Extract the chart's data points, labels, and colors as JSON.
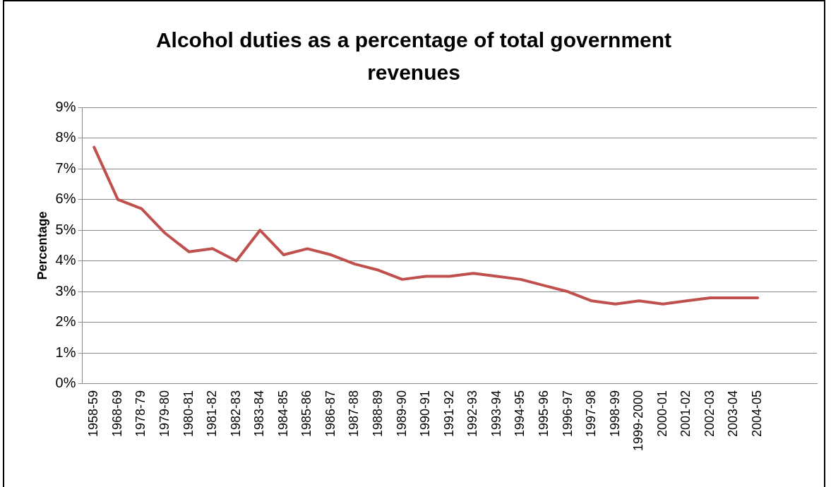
{
  "chart_data": {
    "type": "line",
    "title": "Alcohol duties as a percentage of total government revenues",
    "ylabel": "Percentage",
    "categories": [
      "1958-59",
      "1968-69",
      "1978-79",
      "1979-80",
      "1980-81",
      "1981-82",
      "1982-83",
      "1983-84",
      "1984-85",
      "1985-86",
      "1986-87",
      "1987-88",
      "1988-89",
      "1989-90",
      "1990-91",
      "1991-92",
      "1992-93",
      "1993-94",
      "1994-95",
      "1995-96",
      "1996-97",
      "1997-98",
      "1998-99",
      "1999-2000",
      "2000-01",
      "2001-02",
      "2002-03",
      "2003-04",
      "2004-05",
      null,
      null
    ],
    "series": [
      {
        "color": "#c0504d",
        "values": [
          7.7,
          6.0,
          5.7,
          4.9,
          4.3,
          4.4,
          4.0,
          5.0,
          4.2,
          4.4,
          4.2,
          3.9,
          3.7,
          3.4,
          3.5,
          3.5,
          3.6,
          3.5,
          3.4,
          3.2,
          3.0,
          2.7,
          2.6,
          2.7,
          2.6,
          2.7,
          2.8,
          2.8,
          2.8,
          null,
          null
        ]
      }
    ],
    "ylim": [
      0,
      9
    ],
    "yticks": [
      {
        "value": 0,
        "label": "0%"
      },
      {
        "value": 1,
        "label": "1%"
      },
      {
        "value": 2,
        "label": "2%"
      },
      {
        "value": 3,
        "label": "3%"
      },
      {
        "value": 4,
        "label": "4%"
      },
      {
        "value": 5,
        "label": "5%"
      },
      {
        "value": 6,
        "label": "6%"
      },
      {
        "value": 7,
        "label": "7%"
      },
      {
        "value": 8,
        "label": "8%"
      },
      {
        "value": 9,
        "label": "9%"
      }
    ],
    "grid": "y",
    "legend": false,
    "marker": "none",
    "line_style": "solid"
  }
}
